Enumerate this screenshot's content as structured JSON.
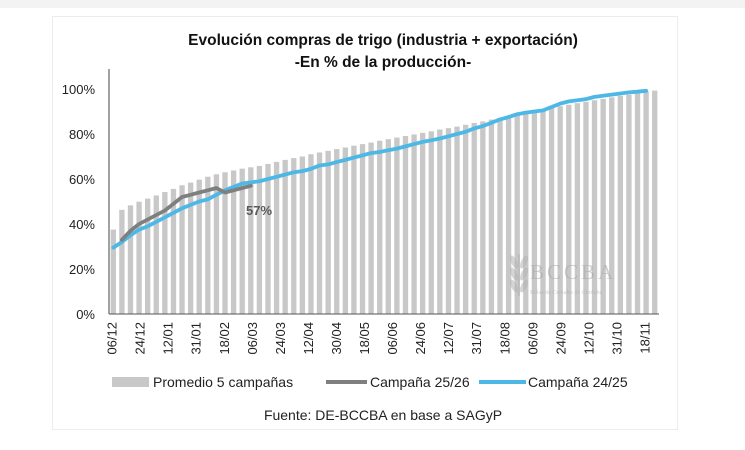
{
  "chart_data": {
    "type": "bar+line",
    "title": "Evolución compras de trigo (industria + exportación)",
    "subtitle": "-En % de la producción-",
    "ylim": [
      0,
      100
    ],
    "yticks": [
      0,
      20,
      40,
      60,
      80,
      100
    ],
    "ytick_labels": [
      "0%",
      "20%",
      "40%",
      "60%",
      "80%",
      "100%"
    ],
    "tick_labels": [
      "06/12",
      "24/12",
      "12/01",
      "31/01",
      "18/02",
      "06/03",
      "24/03",
      "12/04",
      "30/04",
      "18/05",
      "06/06",
      "24/06",
      "12/07",
      "31/07",
      "18/08",
      "06/09",
      "24/09",
      "12/10",
      "31/10",
      "18/11"
    ],
    "series": [
      {
        "name": "Promedio 5 campañas",
        "kind": "bar",
        "color": "#c8c8c8",
        "values": [
          37.5,
          46.3,
          48.3,
          49.9,
          51.3,
          52.7,
          54.2,
          55.6,
          57.2,
          58.4,
          59.7,
          61,
          62.1,
          63,
          63.8,
          64.6,
          65.2,
          65.8,
          66.7,
          67.6,
          68.5,
          69.3,
          70,
          71,
          71.8,
          72.5,
          73.3,
          74,
          74.8,
          75.5,
          76.2,
          77,
          77.7,
          78.4,
          79.1,
          79.8,
          80.5,
          81.2,
          82,
          82.6,
          83.3,
          84.1,
          84.9,
          85.6,
          86.4,
          87.2,
          88,
          88.8,
          89.6,
          90.3,
          91,
          91.7,
          92.4,
          93,
          93.7,
          94.3,
          95,
          95.6,
          96.3,
          97,
          97.5,
          98.3,
          99,
          99.3
        ]
      },
      {
        "name": "Campaña 25/26",
        "kind": "line",
        "color": "#7f7f7f",
        "values": [
          null,
          33,
          37,
          40,
          42,
          44,
          46,
          49,
          52,
          53,
          54,
          55,
          56,
          54,
          55,
          56,
          57
        ]
      },
      {
        "name": "Campaña 24/25",
        "kind": "line",
        "color": "#4db8e6",
        "values": [
          29.5,
          32,
          35,
          37.5,
          39,
          41,
          43,
          45,
          47,
          48.5,
          50,
          51,
          53,
          55,
          56.5,
          58,
          58.5,
          59,
          60,
          61,
          62,
          63,
          63.5,
          64.5,
          66,
          66.5,
          67.5,
          68.5,
          69.5,
          70.5,
          71.5,
          72,
          72.8,
          73.5,
          74.5,
          75.5,
          76.5,
          77.2,
          78,
          79,
          80,
          81,
          82.5,
          83.5,
          85,
          86.5,
          87.5,
          88.8,
          89.5,
          90,
          90.5,
          92,
          93.5,
          94.5,
          95,
          95.5,
          96.5,
          97,
          97.5,
          98,
          98.5,
          98.8,
          99.2
        ]
      }
    ],
    "annotation": "57%",
    "legend_position": "bottom"
  },
  "source": "Fuente: DE-BCCBA en base a SAGyP",
  "watermark": {
    "logo": "BCCBA",
    "tagline": "Bolsa de Cereales de Córdoba"
  }
}
